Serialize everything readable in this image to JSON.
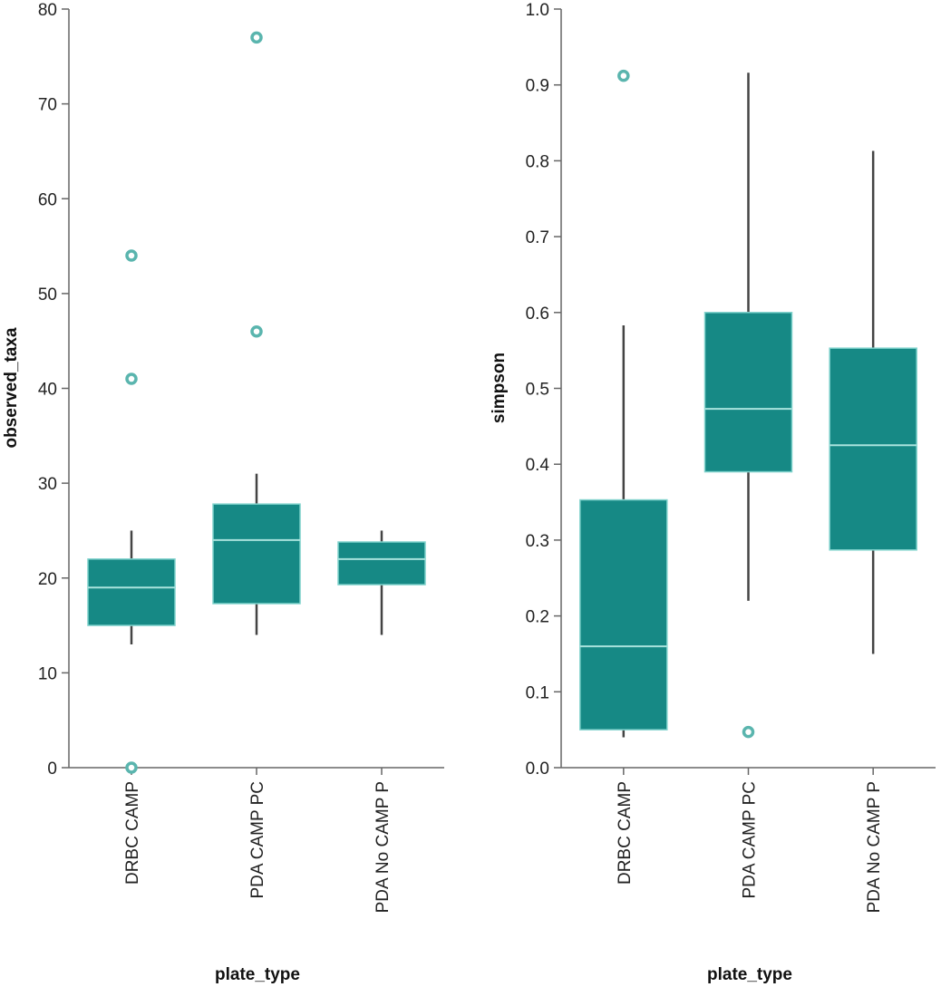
{
  "colors": {
    "box_fill": "#168985",
    "box_stroke": "#7fd2cc",
    "median_line": "#a9e3dd",
    "whisker": "#444444",
    "outlier": "#5ab5ae"
  },
  "chart_data": [
    {
      "type": "boxplot",
      "xlabel": "plate_type",
      "ylabel": "observed_taxa",
      "ylim": [
        0,
        80
      ],
      "yticks": [
        "0",
        "10",
        "20",
        "30",
        "40",
        "50",
        "60",
        "70",
        "80"
      ],
      "categories": [
        "DRBC CAMP",
        "PDA CAMP PC",
        "PDA No CAMP P"
      ],
      "boxes": [
        {
          "category": "DRBC CAMP",
          "whisker_low": 13,
          "q1": 15,
          "median": 19,
          "q3": 22,
          "whisker_high": 25,
          "outliers": [
            0,
            41,
            54
          ]
        },
        {
          "category": "PDA CAMP PC",
          "whisker_low": 14,
          "q1": 17.3,
          "median": 24,
          "q3": 27.8,
          "whisker_high": 31,
          "outliers": [
            46,
            77
          ]
        },
        {
          "category": "PDA No CAMP P",
          "whisker_low": 14,
          "q1": 19.3,
          "median": 22,
          "q3": 23.8,
          "whisker_high": 25,
          "outliers": []
        }
      ]
    },
    {
      "type": "boxplot",
      "xlabel": "plate_type",
      "ylabel": "simpson",
      "ylim": [
        0,
        1
      ],
      "yticks": [
        "0.0",
        "0.1",
        "0.2",
        "0.3",
        "0.4",
        "0.5",
        "0.6",
        "0.7",
        "0.8",
        "0.9",
        "1.0"
      ],
      "categories": [
        "DRBC CAMP",
        "PDA CAMP PC",
        "PDA No CAMP P"
      ],
      "boxes": [
        {
          "category": "DRBC CAMP",
          "whisker_low": 0.04,
          "q1": 0.05,
          "median": 0.16,
          "q3": 0.353,
          "whisker_high": 0.583,
          "outliers": [
            0.912
          ]
        },
        {
          "category": "PDA CAMP PC",
          "whisker_low": 0.22,
          "q1": 0.39,
          "median": 0.473,
          "q3": 0.6,
          "whisker_high": 0.916,
          "outliers": [
            0.047
          ]
        },
        {
          "category": "PDA No CAMP P",
          "whisker_low": 0.15,
          "q1": 0.287,
          "median": 0.425,
          "q3": 0.553,
          "whisker_high": 0.813,
          "outliers": []
        }
      ]
    }
  ]
}
